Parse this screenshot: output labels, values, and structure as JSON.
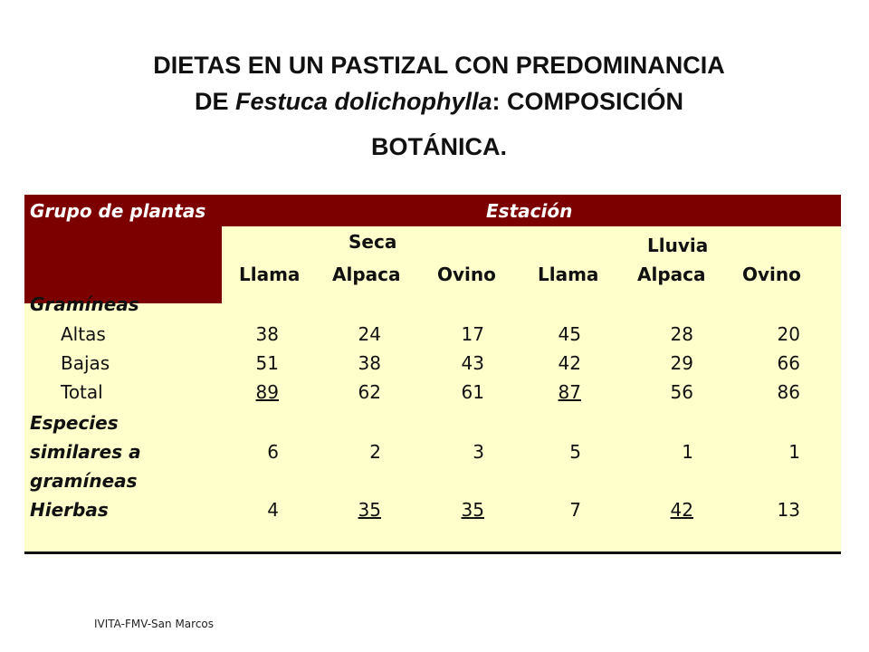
{
  "title": {
    "line1": "DIETAS EN UN PASTIZAL CON PREDOMINANCIA",
    "line2_prefix": "DE ",
    "line2_italic": "Festuca dolichophylla",
    "line2_suffix": ":  COMPOSICIÓN",
    "line3": "BOTÁNICA."
  },
  "table": {
    "header_group": "Grupo de plantas",
    "header_station": "Estación",
    "seca": "Seca",
    "lluvia": "Lluvia",
    "columns": [
      "Llama",
      "Alpaca",
      "Ovino",
      "Llama",
      "Alpaca",
      "Ovino"
    ],
    "section_gramineas": "Gramíneas",
    "rows": [
      {
        "label": "Altas",
        "values": [
          "38",
          "24",
          "17",
          "45",
          "28",
          "20"
        ]
      },
      {
        "label": "Bajas",
        "values": [
          "51",
          "38",
          "43",
          "42",
          "29",
          "66"
        ]
      },
      {
        "label": "Total",
        "values": [
          "89",
          "62",
          "61",
          "87",
          "56",
          "86"
        ]
      }
    ],
    "especies_label_1": "Especies",
    "especies_label_2": "similares a",
    "especies_label_3": "gramíneas",
    "especies_values": [
      "6",
      "2",
      "3",
      "5",
      "1",
      "1"
    ],
    "hierbas_label": "Hierbas",
    "hierbas_values": [
      "4",
      "35",
      "35",
      "7",
      "42",
      "13"
    ]
  },
  "footer": "IVITA-FMV-San Marcos",
  "colors": {
    "header_bg": "#7d0000",
    "table_bg": "#ffffcc"
  }
}
